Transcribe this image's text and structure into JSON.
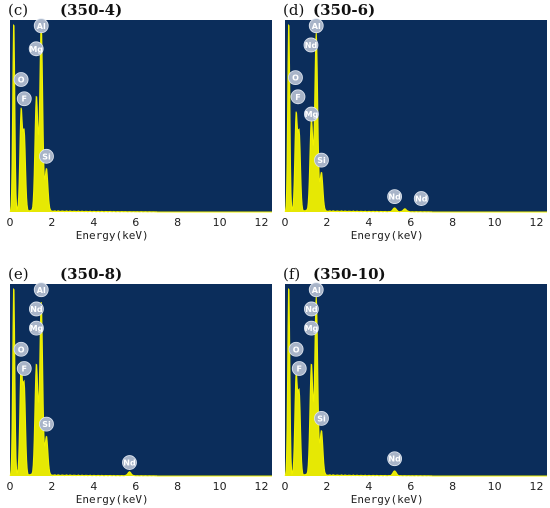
{
  "figure": {
    "background_color": "#ffffff",
    "plot_background": "#0b2d5b",
    "spectrum_color": "#f2f200",
    "marker_color": "#a8b4c8"
  },
  "chart_data": [
    {
      "type": "line",
      "panel_label": "(c)",
      "title": "(350-4)",
      "xlabel": "Energy(keV)",
      "ylabel": "",
      "xlim": [
        0,
        12.5
      ],
      "ylim": [
        0,
        100
      ],
      "x_ticks": [
        "0",
        "2",
        "4",
        "6",
        "8",
        "10",
        "12"
      ],
      "grid": false,
      "peaks": [
        {
          "x": 0.18,
          "y": 100,
          "width": 0.05
        },
        {
          "x": 0.53,
          "y": 52,
          "width": 0.06
        },
        {
          "x": 0.68,
          "y": 40,
          "width": 0.06
        },
        {
          "x": 1.26,
          "y": 60,
          "width": 0.07
        },
        {
          "x": 1.49,
          "y": 97,
          "width": 0.07
        },
        {
          "x": 1.74,
          "y": 22,
          "width": 0.07
        }
      ],
      "markers": [
        {
          "label": "Al",
          "x": 1.49,
          "y": 97
        },
        {
          "label": "Mg",
          "x": 1.25,
          "y": 85
        },
        {
          "label": "O",
          "x": 0.53,
          "y": 69
        },
        {
          "label": "F",
          "x": 0.68,
          "y": 59
        },
        {
          "label": "Si",
          "x": 1.74,
          "y": 29
        }
      ]
    },
    {
      "type": "line",
      "panel_label": "(d)",
      "title": "(350-6)",
      "xlabel": "Energy(keV)",
      "ylabel": "",
      "xlim": [
        0,
        12.5
      ],
      "ylim": [
        0,
        100
      ],
      "x_ticks": [
        "0",
        "2",
        "4",
        "6",
        "8",
        "10",
        "12"
      ],
      "grid": false,
      "peaks": [
        {
          "x": 0.18,
          "y": 100,
          "width": 0.05
        },
        {
          "x": 0.53,
          "y": 50,
          "width": 0.06
        },
        {
          "x": 0.68,
          "y": 40,
          "width": 0.06
        },
        {
          "x": 1.26,
          "y": 48,
          "width": 0.07
        },
        {
          "x": 1.49,
          "y": 93,
          "width": 0.07
        },
        {
          "x": 1.74,
          "y": 20,
          "width": 0.07
        },
        {
          "x": 5.23,
          "y": 2,
          "width": 0.08
        },
        {
          "x": 5.72,
          "y": 1.5,
          "width": 0.08
        }
      ],
      "markers": [
        {
          "label": "Al",
          "x": 1.49,
          "y": 97
        },
        {
          "label": "Nd",
          "x": 1.24,
          "y": 87
        },
        {
          "label": "O",
          "x": 0.5,
          "y": 70
        },
        {
          "label": "F",
          "x": 0.62,
          "y": 60
        },
        {
          "label": "Mg",
          "x": 1.26,
          "y": 51
        },
        {
          "label": "Si",
          "x": 1.74,
          "y": 27
        },
        {
          "label": "Nd",
          "x": 5.23,
          "y": 8
        },
        {
          "label": "Nd",
          "x": 6.5,
          "y": 7
        }
      ]
    },
    {
      "type": "line",
      "panel_label": "(e)",
      "title": "(350-8)",
      "xlabel": "Energy(keV)",
      "ylabel": "",
      "xlim": [
        0,
        12.5
      ],
      "ylim": [
        0,
        100
      ],
      "x_ticks": [
        "0",
        "2",
        "4",
        "6",
        "8",
        "10",
        "12"
      ],
      "grid": false,
      "peaks": [
        {
          "x": 0.18,
          "y": 100,
          "width": 0.05
        },
        {
          "x": 0.53,
          "y": 57,
          "width": 0.06
        },
        {
          "x": 0.68,
          "y": 46,
          "width": 0.06
        },
        {
          "x": 1.26,
          "y": 58,
          "width": 0.07
        },
        {
          "x": 1.49,
          "y": 90,
          "width": 0.07
        },
        {
          "x": 1.74,
          "y": 20,
          "width": 0.07
        },
        {
          "x": 5.7,
          "y": 2,
          "width": 0.08
        }
      ],
      "markers": [
        {
          "label": "Al",
          "x": 1.49,
          "y": 97
        },
        {
          "label": "Nd",
          "x": 1.26,
          "y": 87
        },
        {
          "label": "Mg",
          "x": 1.26,
          "y": 77
        },
        {
          "label": "O",
          "x": 0.53,
          "y": 66
        },
        {
          "label": "F",
          "x": 0.68,
          "y": 56
        },
        {
          "label": "Si",
          "x": 1.74,
          "y": 27
        },
        {
          "label": "Nd",
          "x": 5.7,
          "y": 7
        }
      ]
    },
    {
      "type": "line",
      "panel_label": "(f)",
      "title": "(350-10)",
      "xlabel": "Energy(keV)",
      "ylabel": "",
      "xlim": [
        0,
        12.5
      ],
      "ylim": [
        0,
        100
      ],
      "x_ticks": [
        "0",
        "2",
        "4",
        "6",
        "8",
        "10",
        "12"
      ],
      "grid": false,
      "peaks": [
        {
          "x": 0.18,
          "y": 100,
          "width": 0.05
        },
        {
          "x": 0.53,
          "y": 52,
          "width": 0.06
        },
        {
          "x": 0.68,
          "y": 42,
          "width": 0.06
        },
        {
          "x": 1.26,
          "y": 58,
          "width": 0.07
        },
        {
          "x": 1.49,
          "y": 93,
          "width": 0.07
        },
        {
          "x": 1.74,
          "y": 23,
          "width": 0.07
        },
        {
          "x": 5.23,
          "y": 2.5,
          "width": 0.08
        }
      ],
      "markers": [
        {
          "label": "Al",
          "x": 1.49,
          "y": 97
        },
        {
          "label": "Nd",
          "x": 1.26,
          "y": 87
        },
        {
          "label": "Mg",
          "x": 1.26,
          "y": 77
        },
        {
          "label": "O",
          "x": 0.53,
          "y": 66
        },
        {
          "label": "F",
          "x": 0.68,
          "y": 56
        },
        {
          "label": "Si",
          "x": 1.74,
          "y": 30
        },
        {
          "label": "Nd",
          "x": 5.23,
          "y": 9
        }
      ]
    }
  ]
}
